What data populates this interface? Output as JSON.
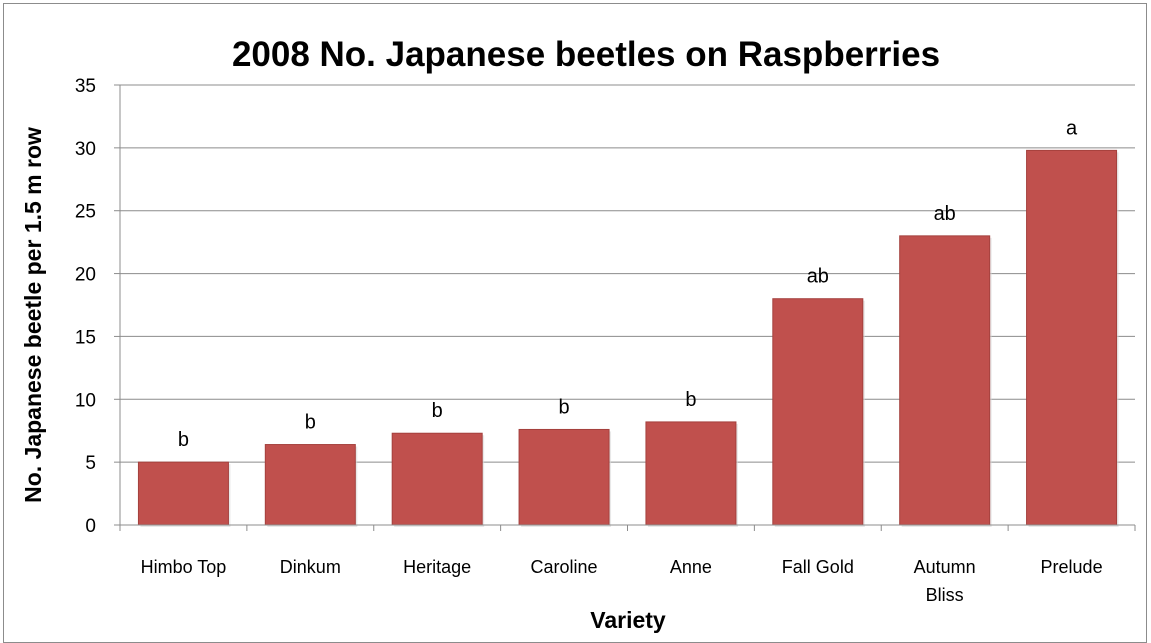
{
  "chart_data": {
    "type": "bar",
    "title": "2008 No. Japanese beetles on Raspberries",
    "xlabel": "Variety",
    "ylabel": "No. Japanese beetle per 1.5 m row",
    "categories": [
      [
        "Himbo Top"
      ],
      [
        "Dinkum"
      ],
      [
        "Heritage"
      ],
      [
        "Caroline"
      ],
      [
        "Anne"
      ],
      [
        "Fall Gold"
      ],
      [
        "Autumn",
        "Bliss"
      ],
      [
        "Prelude"
      ]
    ],
    "values": [
      5.0,
      6.4,
      7.3,
      7.6,
      8.2,
      18.0,
      23.0,
      29.8
    ],
    "data_labels": [
      "b",
      "b",
      "b",
      "b",
      "b",
      "ab",
      "ab",
      "a"
    ],
    "ylim": [
      0,
      35
    ],
    "yticks": [
      "0",
      "5",
      "10",
      "15",
      "20",
      "25",
      "30",
      "35"
    ],
    "grid": true,
    "legend": "none",
    "colors": {
      "bar": "#c0504d",
      "bar_edge": "#a4403d",
      "grid": "#8c8c8c",
      "axis": "#8c8c8c"
    }
  }
}
